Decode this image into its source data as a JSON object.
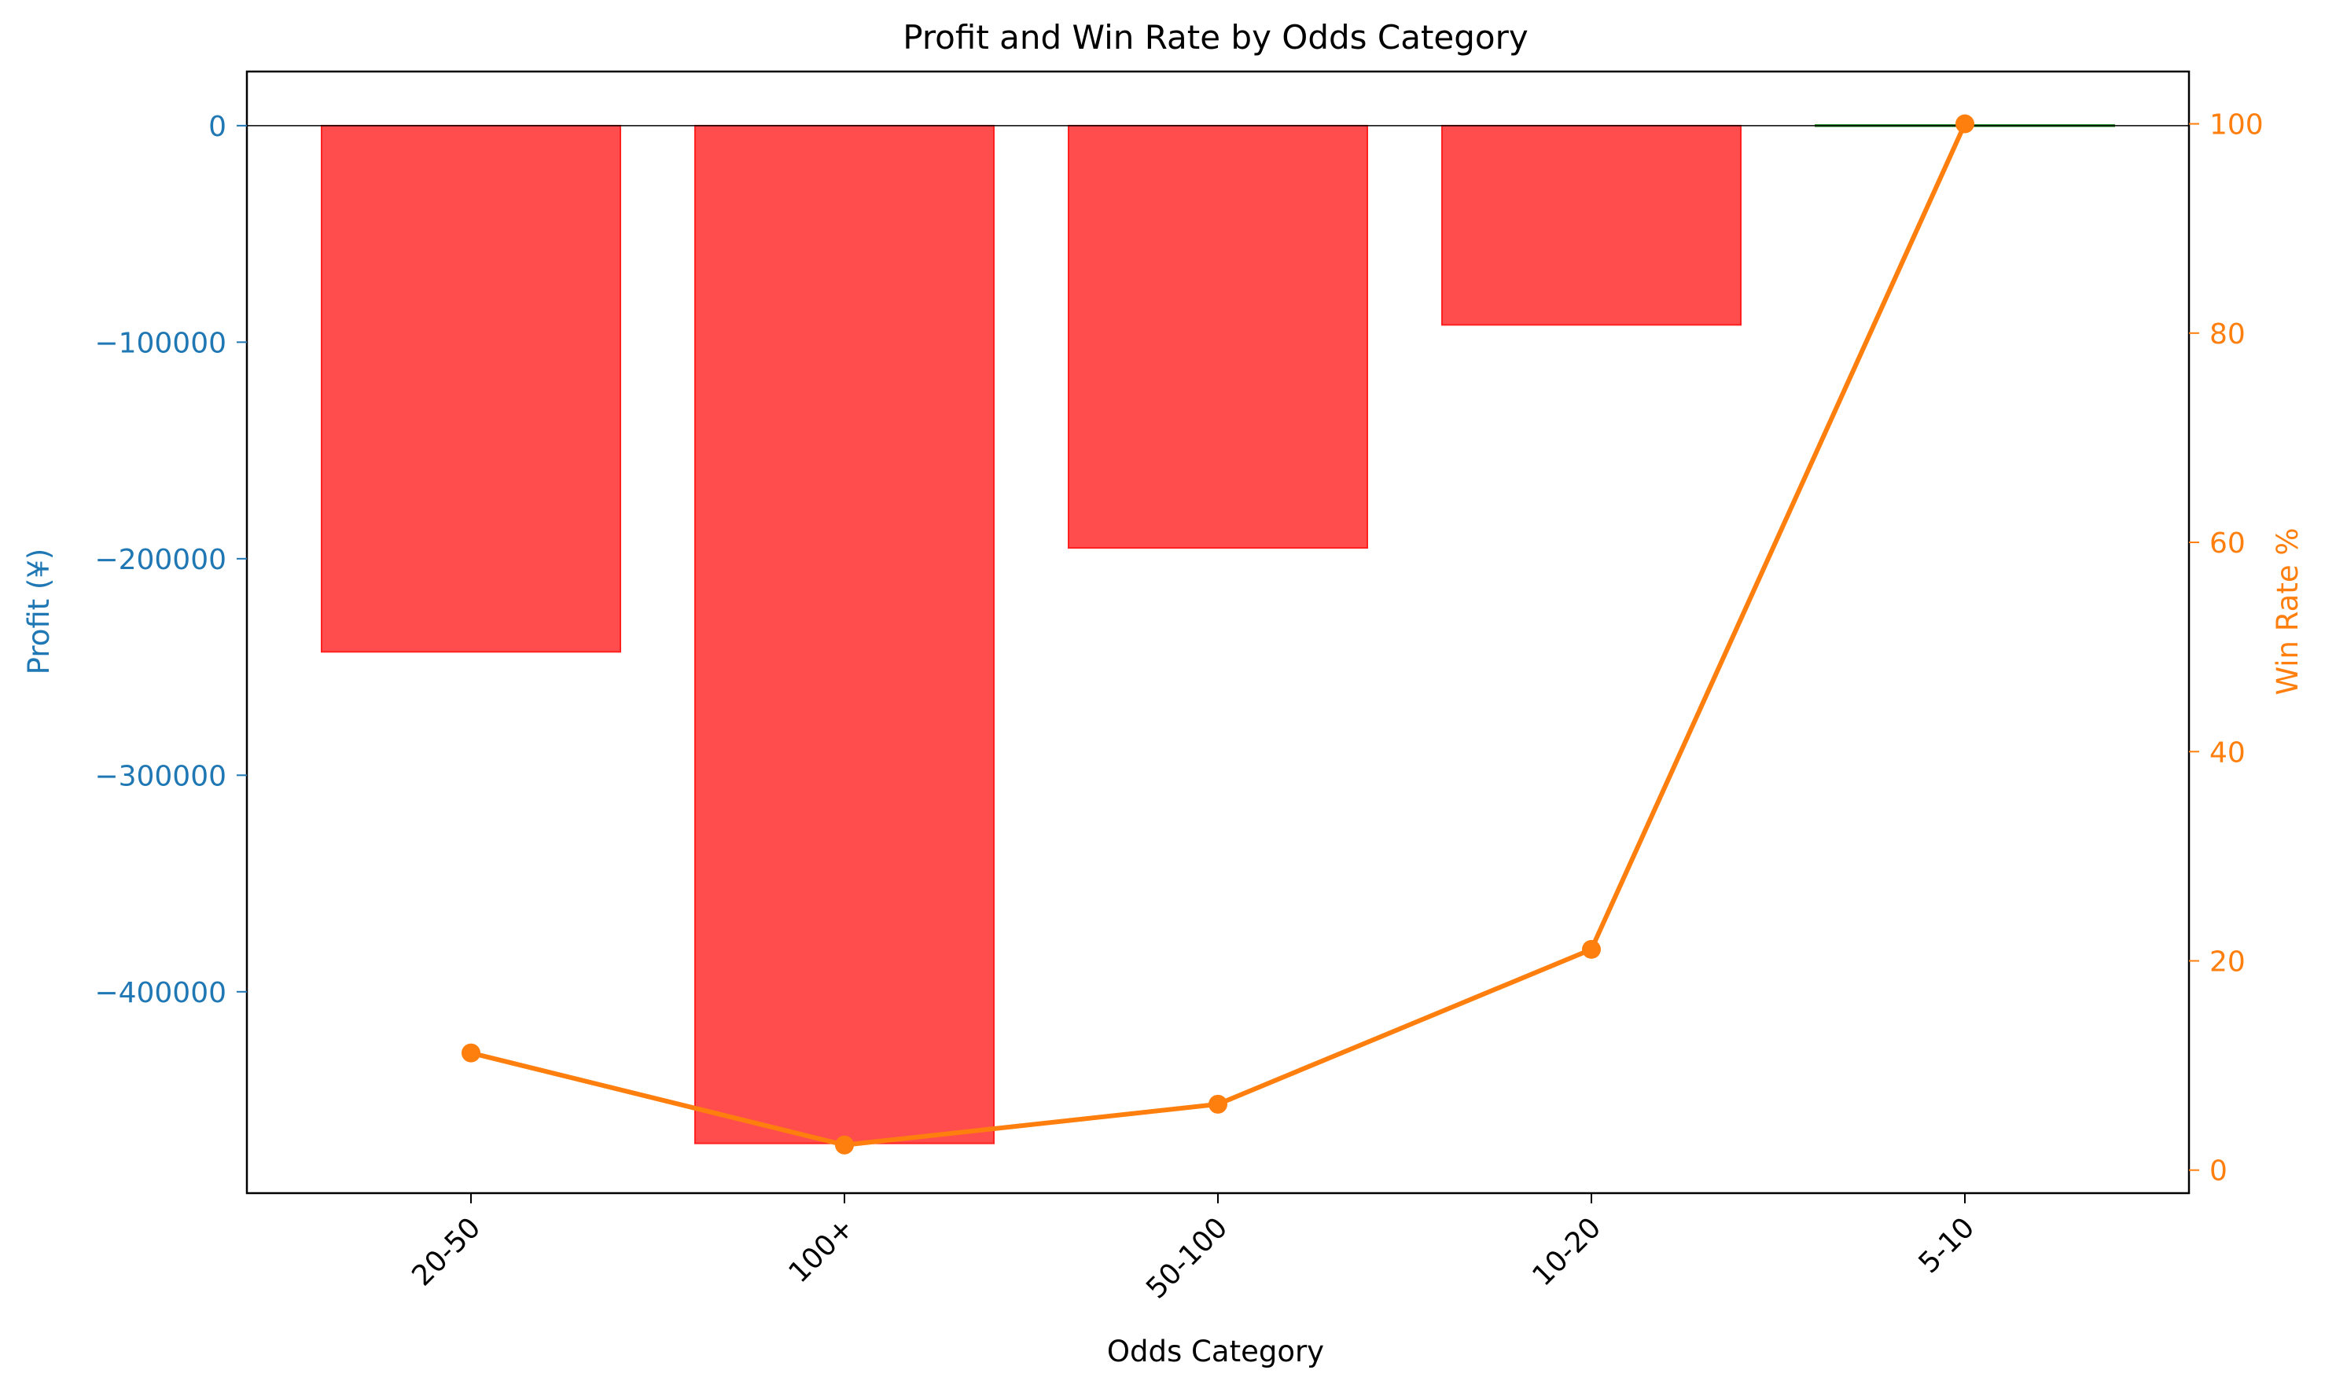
{
  "chart_data": {
    "type": "bar",
    "title": "Profit and Win Rate by Odds Category",
    "xlabel": "Odds Category",
    "ylabel": "Profit (¥)",
    "y2label": "Win Rate %",
    "categories": [
      "20-50",
      "100+",
      "50-100",
      "10-20",
      "5-10"
    ],
    "series": [
      {
        "type": "bar",
        "axis": "left",
        "values": [
          -243000,
          -470000,
          -195000,
          -92000,
          300
        ],
        "colors": [
          "#ff4d4d",
          "#ff4d4d",
          "#ff4d4d",
          "#ff4d4d",
          "#228b22"
        ]
      },
      {
        "type": "line",
        "axis": "right",
        "values": [
          11.2,
          2.4,
          6.3,
          21.1,
          100
        ],
        "color": "#ff7f0e"
      }
    ],
    "ylim": [
      -493000,
      25000
    ],
    "y2lim": [
      -2.2,
      105
    ],
    "yticks": [
      0,
      -100000,
      -200000,
      -300000,
      -400000
    ],
    "y2ticks": [
      0,
      20,
      40,
      60,
      80,
      100
    ],
    "zero_line": true,
    "grid": false,
    "colors": {
      "left_axis": "#1f77b4",
      "right_axis": "#ff7f0e",
      "negative_bar": "#ff4d4d",
      "negative_edge": "#ff2020",
      "positive_bar": "#228b22"
    }
  }
}
